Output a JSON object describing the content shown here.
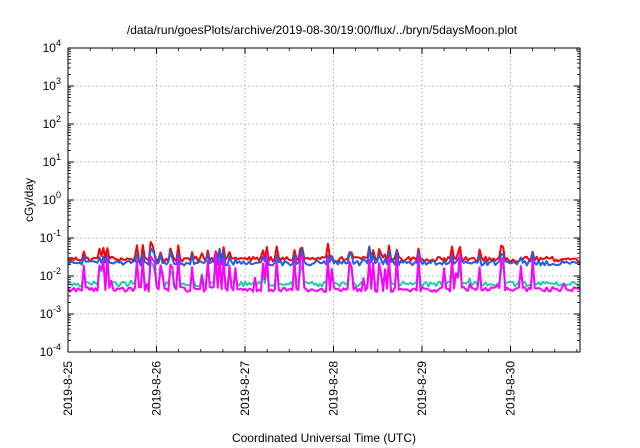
{
  "chart_data": {
    "type": "line",
    "title": "/data/run/goesPlots/archive/2019-08-30/19:00/flux/../bryn/5daysMoon.plot",
    "xlabel": "Coordinated Universal Time (UTC)",
    "ylabel": "cGy/day",
    "yscale": "log",
    "grid": true,
    "ylim": [
      0.0001,
      10000
    ],
    "xlim_days": [
      "2019-08-25",
      "2019-08-30T20:00"
    ],
    "x_ticks": [
      "2019-8-25",
      "2019-8-26",
      "2019-8-27",
      "2019-8-28",
      "2019-8-29",
      "2019-8-30"
    ],
    "y_ticks": [
      {
        "base": "10",
        "exp": "-4"
      },
      {
        "base": "10",
        "exp": "-3"
      },
      {
        "base": "10",
        "exp": "-2"
      },
      {
        "base": "10",
        "exp": "-1"
      },
      {
        "base": "10",
        "exp": "0"
      },
      {
        "base": "10",
        "exp": "1"
      },
      {
        "base": "10",
        "exp": "2"
      },
      {
        "base": "10",
        "exp": "3"
      },
      {
        "base": "10",
        "exp": "4"
      }
    ],
    "series": [
      {
        "color": "#ff0000",
        "baseline": 0.028,
        "spike_max": 0.08
      },
      {
        "color": "#1f5fe0",
        "baseline": 0.022,
        "spike_max": 0.06
      },
      {
        "color": "#22ccaa",
        "baseline": 0.0062,
        "spike_max": 0.03
      },
      {
        "color": "#ff00ff",
        "baseline": 0.0045,
        "spike_max": 0.045
      }
    ]
  }
}
